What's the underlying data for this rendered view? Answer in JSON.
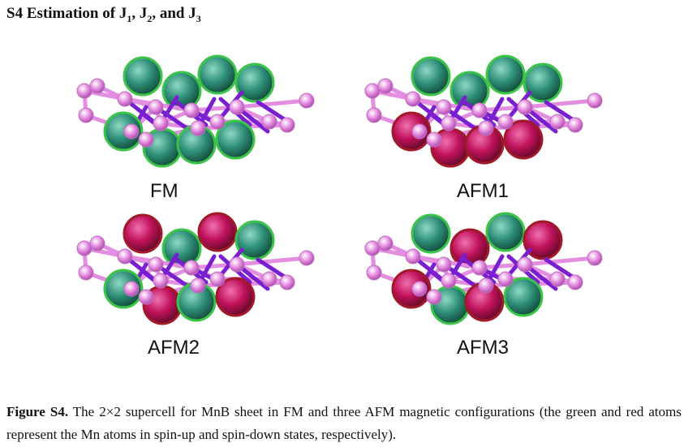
{
  "heading": {
    "prefix": "S4 Estimation of J",
    "sub1": "1",
    "mid1": ", J",
    "sub2": "2",
    "mid2": ", and J",
    "sub3": "3"
  },
  "panels": [
    {
      "label": "FM",
      "spins": [
        "up",
        "up",
        "up",
        "up",
        "up",
        "up",
        "up",
        "up"
      ]
    },
    {
      "label": "AFM1",
      "spins": [
        "up",
        "up",
        "up",
        "up",
        "down",
        "down",
        "down",
        "down"
      ]
    },
    {
      "label": "AFM2",
      "spins": [
        "down",
        "down",
        "up",
        "up",
        "up",
        "up",
        "down",
        "down"
      ]
    },
    {
      "label": "AFM3",
      "spins": [
        "up",
        "up",
        "down",
        "down",
        "down",
        "down",
        "up",
        "up"
      ]
    }
  ],
  "caption": {
    "lead": "Figure S4.",
    "text": " The 2×2 supercell for MnB sheet in FM and three AFM magnetic configurations (the green and red atoms represent the Mn atoms in spin-up and spin-down states, respectively)."
  },
  "colors": {
    "spin_up": "#2e8f78",
    "spin_up_edge": "#3cc44a",
    "spin_down": "#c0125a",
    "spin_down_edge": "#a01a2a",
    "boron": "#e58ee0",
    "bond_light": "#e38ee0",
    "bond_dark": "#7a1fd0"
  }
}
